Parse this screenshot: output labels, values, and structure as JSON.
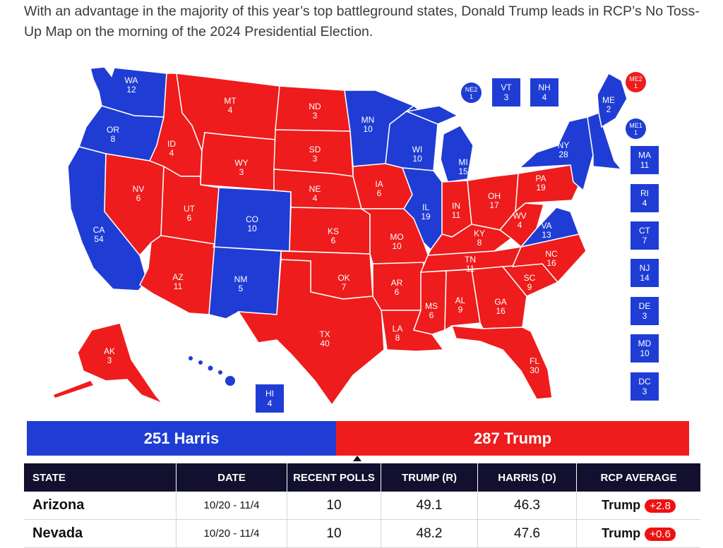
{
  "intro_text": "With an advantage in the majority of this year’s top battleground states, Donald Trump leads in RCP’s No Toss-Up Map on the morning of the 2024 Presidential Election.",
  "colors": {
    "dem": "#1f3dd4",
    "rep": "#ee1c1c",
    "header": "#12102e"
  },
  "states": [
    {
      "abbr": "WA",
      "ev": "12",
      "party": "D"
    },
    {
      "abbr": "OR",
      "ev": "8",
      "party": "D"
    },
    {
      "abbr": "CA",
      "ev": "54",
      "party": "D"
    },
    {
      "abbr": "ID",
      "ev": "4",
      "party": "R"
    },
    {
      "abbr": "NV",
      "ev": "6",
      "party": "R"
    },
    {
      "abbr": "MT",
      "ev": "4",
      "party": "R"
    },
    {
      "abbr": "WY",
      "ev": "3",
      "party": "R"
    },
    {
      "abbr": "UT",
      "ev": "6",
      "party": "R"
    },
    {
      "abbr": "CO",
      "ev": "10",
      "party": "D"
    },
    {
      "abbr": "AZ",
      "ev": "11",
      "party": "R"
    },
    {
      "abbr": "NM",
      "ev": "5",
      "party": "D"
    },
    {
      "abbr": "ND",
      "ev": "3",
      "party": "R"
    },
    {
      "abbr": "SD",
      "ev": "3",
      "party": "R"
    },
    {
      "abbr": "NE",
      "ev": "4",
      "party": "R"
    },
    {
      "abbr": "KS",
      "ev": "6",
      "party": "R"
    },
    {
      "abbr": "OK",
      "ev": "7",
      "party": "R"
    },
    {
      "abbr": "TX",
      "ev": "40",
      "party": "R"
    },
    {
      "abbr": "MN",
      "ev": "10",
      "party": "D"
    },
    {
      "abbr": "IA",
      "ev": "6",
      "party": "R"
    },
    {
      "abbr": "MO",
      "ev": "10",
      "party": "R"
    },
    {
      "abbr": "AR",
      "ev": "6",
      "party": "R"
    },
    {
      "abbr": "LA",
      "ev": "8",
      "party": "R"
    },
    {
      "abbr": "WI",
      "ev": "10",
      "party": "D"
    },
    {
      "abbr": "IL",
      "ev": "19",
      "party": "D"
    },
    {
      "abbr": "MI",
      "ev": "15",
      "party": "D"
    },
    {
      "abbr": "IN",
      "ev": "11",
      "party": "R"
    },
    {
      "abbr": "OH",
      "ev": "17",
      "party": "R"
    },
    {
      "abbr": "KY",
      "ev": "8",
      "party": "R"
    },
    {
      "abbr": "TN",
      "ev": "11",
      "party": "R"
    },
    {
      "abbr": "MS",
      "ev": "6",
      "party": "R"
    },
    {
      "abbr": "AL",
      "ev": "9",
      "party": "R"
    },
    {
      "abbr": "GA",
      "ev": "16",
      "party": "R"
    },
    {
      "abbr": "FL",
      "ev": "30",
      "party": "R"
    },
    {
      "abbr": "SC",
      "ev": "9",
      "party": "R"
    },
    {
      "abbr": "NC",
      "ev": "16",
      "party": "R"
    },
    {
      "abbr": "VA",
      "ev": "13",
      "party": "D"
    },
    {
      "abbr": "WV",
      "ev": "4",
      "party": "R"
    },
    {
      "abbr": "PA",
      "ev": "19",
      "party": "R"
    },
    {
      "abbr": "NY",
      "ev": "28",
      "party": "D"
    },
    {
      "abbr": "ME",
      "ev": "2",
      "party": "D"
    },
    {
      "abbr": "AK",
      "ev": "3",
      "party": "R"
    },
    {
      "abbr": "HI",
      "ev": "4",
      "party": "D"
    }
  ],
  "small_states": [
    {
      "abbr": "VT",
      "ev": "3"
    },
    {
      "abbr": "NH",
      "ev": "4"
    },
    {
      "abbr": "MA",
      "ev": "11"
    },
    {
      "abbr": "RI",
      "ev": "4"
    },
    {
      "abbr": "CT",
      "ev": "7"
    },
    {
      "abbr": "NJ",
      "ev": "14"
    },
    {
      "abbr": "DE",
      "ev": "3"
    },
    {
      "abbr": "MD",
      "ev": "10"
    },
    {
      "abbr": "DC",
      "ev": "3"
    }
  ],
  "districts": [
    {
      "abbr": "NE2",
      "ev": "1",
      "party": "D"
    },
    {
      "abbr": "ME2",
      "ev": "1",
      "party": "R"
    },
    {
      "abbr": "ME1",
      "ev": "1",
      "party": "D"
    }
  ],
  "tally": {
    "harris": "251 Harris",
    "trump": "287 Trump",
    "harris_ev": 251,
    "trump_ev": 287
  },
  "table": {
    "headers": [
      "STATE",
      "DATE",
      "RECENT POLLS",
      "TRUMP (R)",
      "HARRIS (D)",
      "RCP AVERAGE"
    ],
    "rows": [
      {
        "state": "Arizona",
        "date": "10/20 - 11/4",
        "polls": "10",
        "trump": "49.1",
        "harris": "46.3",
        "leader": "Trump",
        "spread": "+2.8"
      },
      {
        "state": "Nevada",
        "date": "10/20 - 11/4",
        "polls": "10",
        "trump": "48.2",
        "harris": "47.6",
        "leader": "Trump",
        "spread": "+0.6"
      }
    ]
  }
}
